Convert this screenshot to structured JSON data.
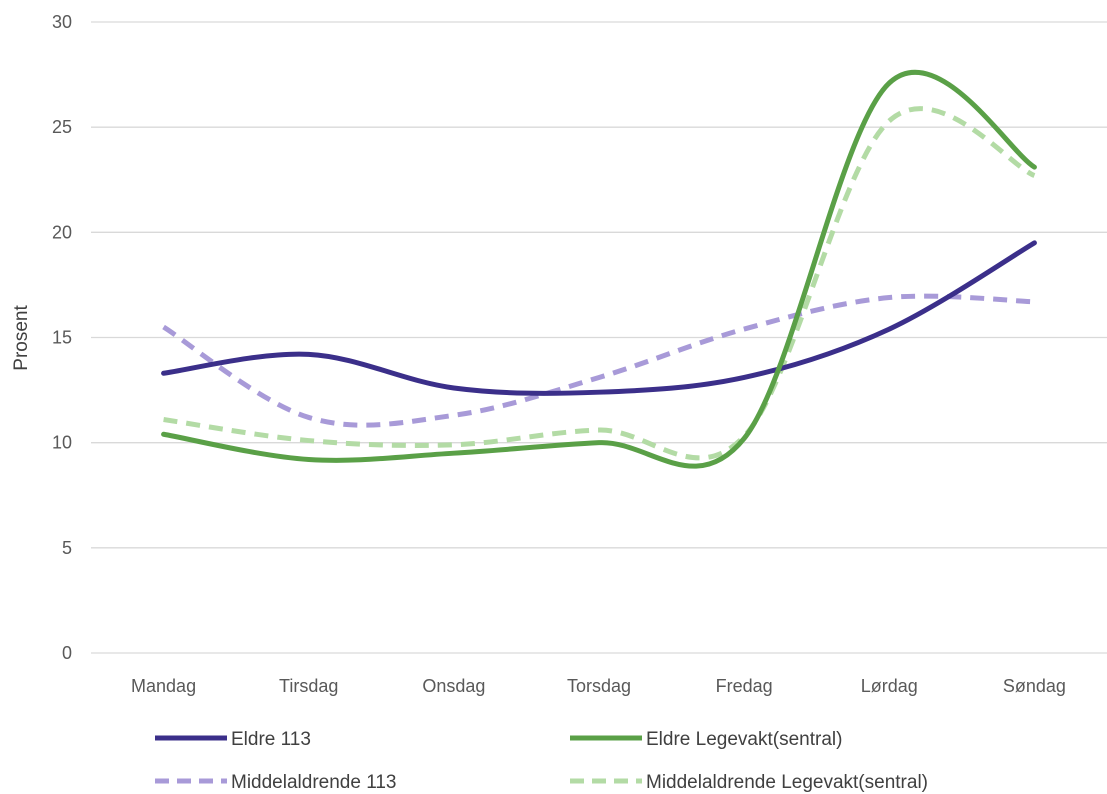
{
  "chart_data": {
    "type": "line",
    "title": "",
    "xlabel": "",
    "ylabel": "Prosent",
    "ylim": [
      0,
      30
    ],
    "yticks": [
      0,
      5,
      10,
      15,
      20,
      25,
      30
    ],
    "grid": true,
    "legend_position": "bottom",
    "categories": [
      "Mandag",
      "Tirsdag",
      "Onsdag",
      "Torsdag",
      "Fredag",
      "Lørdag",
      "Søndag"
    ],
    "series": [
      {
        "name": "Eldre 113",
        "values": [
          13.3,
          14.2,
          12.6,
          12.4,
          13.1,
          15.4,
          19.5
        ],
        "color": "#3b2f8a",
        "dashed": false
      },
      {
        "name": "Eldre Legevakt(sentral)",
        "values": [
          10.4,
          9.2,
          9.5,
          10.0,
          10.2,
          27.1,
          23.1
        ],
        "color": "#5aa047",
        "dashed": false
      },
      {
        "name": "Middelaldrende 113",
        "values": [
          15.5,
          11.2,
          11.3,
          13.1,
          15.4,
          16.9,
          16.7
        ],
        "color": "#a89ad8",
        "dashed": true
      },
      {
        "name": "Middelaldrende Legevakt(sentral)",
        "values": [
          11.1,
          10.1,
          9.9,
          10.6,
          10.3,
          25.3,
          22.7
        ],
        "color": "#b3dba5",
        "dashed": true
      }
    ]
  }
}
